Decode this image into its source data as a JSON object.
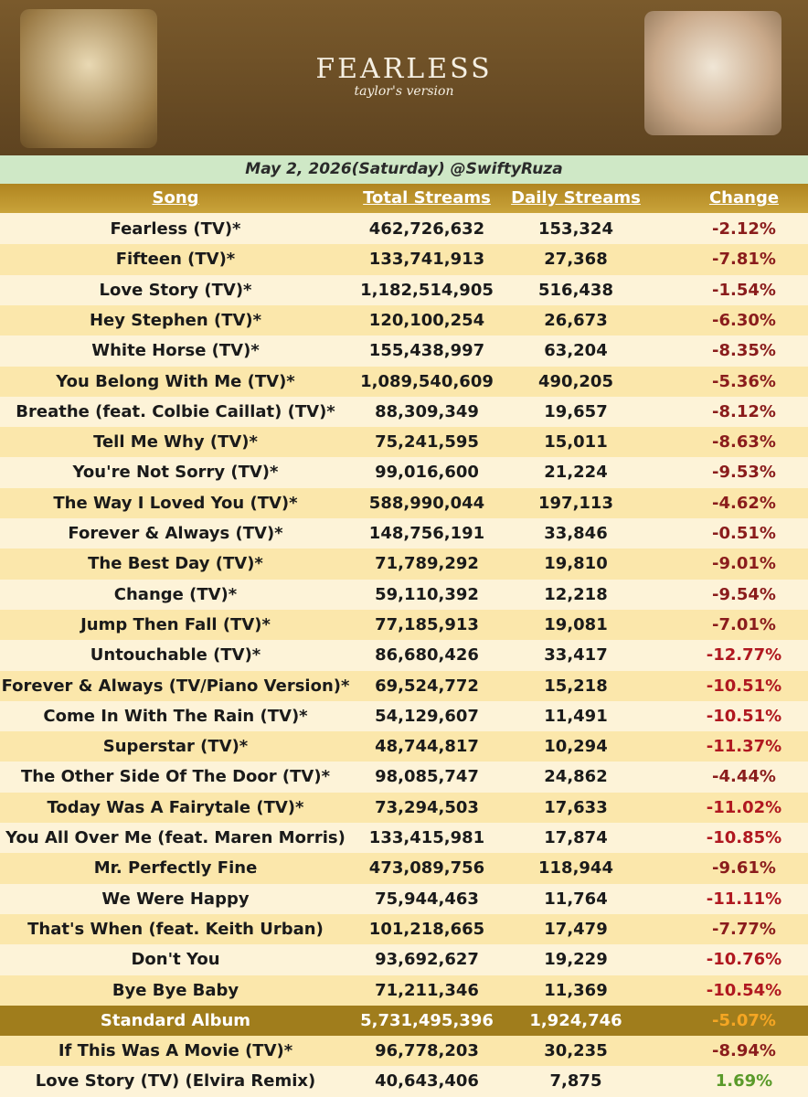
{
  "header": {
    "title": "FEARLESS",
    "subtitle": "taylor's version",
    "date_line": "May 2, 2026(Saturday) @SwiftyRuza"
  },
  "table": {
    "columns": [
      "Song",
      "Total Streams",
      "Daily Streams",
      "Change"
    ],
    "rows": [
      [
        "Fearless (TV)*",
        "462,726,632",
        "153,324",
        "-2.12%"
      ],
      [
        "Fifteen (TV)*",
        "133,741,913",
        "27,368",
        "-7.81%"
      ],
      [
        "Love Story (TV)*",
        "1,182,514,905",
        "516,438",
        "-1.54%"
      ],
      [
        "Hey Stephen (TV)*",
        "120,100,254",
        "26,673",
        "-6.30%"
      ],
      [
        "White Horse (TV)*",
        "155,438,997",
        "63,204",
        "-8.35%"
      ],
      [
        "You Belong With Me (TV)*",
        "1,089,540,609",
        "490,205",
        "-5.36%"
      ],
      [
        "Breathe (feat. Colbie Caillat) (TV)*",
        "88,309,349",
        "19,657",
        "-8.12%"
      ],
      [
        "Tell Me Why (TV)*",
        "75,241,595",
        "15,011",
        "-8.63%"
      ],
      [
        "You're Not Sorry (TV)*",
        "99,016,600",
        "21,224",
        "-9.53%"
      ],
      [
        "The Way I Loved You (TV)*",
        "588,990,044",
        "197,113",
        "-4.62%"
      ],
      [
        "Forever & Always (TV)*",
        "148,756,191",
        "33,846",
        "-0.51%"
      ],
      [
        "The Best Day (TV)*",
        "71,789,292",
        "19,810",
        "-9.01%"
      ],
      [
        "Change (TV)*",
        "59,110,392",
        "12,218",
        "-9.54%"
      ],
      [
        "Jump Then Fall (TV)*",
        "77,185,913",
        "19,081",
        "-7.01%"
      ],
      [
        "Untouchable (TV)*",
        "86,680,426",
        "33,417",
        "-12.77%"
      ],
      [
        "Forever & Always (TV/Piano Version)*",
        "69,524,772",
        "15,218",
        "-10.51%"
      ],
      [
        "Come In With The Rain (TV)*",
        "54,129,607",
        "11,491",
        "-10.51%"
      ],
      [
        "Superstar (TV)*",
        "48,744,817",
        "10,294",
        "-11.37%"
      ],
      [
        "The Other Side Of The Door (TV)*",
        "98,085,747",
        "24,862",
        "-4.44%"
      ],
      [
        "Today Was A Fairytale (TV)*",
        "73,294,503",
        "17,633",
        "-11.02%"
      ],
      [
        "You All Over Me (feat. Maren Morris)",
        "133,415,981",
        "17,874",
        "-10.85%"
      ],
      [
        "Mr. Perfectly Fine",
        "473,089,756",
        "118,944",
        "-9.61%"
      ],
      [
        "We Were Happy",
        "75,944,463",
        "11,764",
        "-11.11%"
      ],
      [
        "That's When (feat. Keith Urban)",
        "101,218,665",
        "17,479",
        "-7.77%"
      ],
      [
        "Don't You",
        "93,692,627",
        "19,229",
        "-10.76%"
      ],
      [
        "Bye Bye Baby",
        "71,211,346",
        "11,369",
        "-10.54%"
      ]
    ],
    "album_total": [
      "Standard Album",
      "5,731,495,396",
      "1,924,746",
      "-5.07%"
    ],
    "extra_rows": [
      [
        "If This Was A Movie (TV)*",
        "96,778,203",
        "30,235",
        "-8.94%"
      ],
      [
        "Love Story (TV) (Elvira Remix)",
        "40,643,406",
        "7,875",
        "1.69%"
      ]
    ]
  }
}
